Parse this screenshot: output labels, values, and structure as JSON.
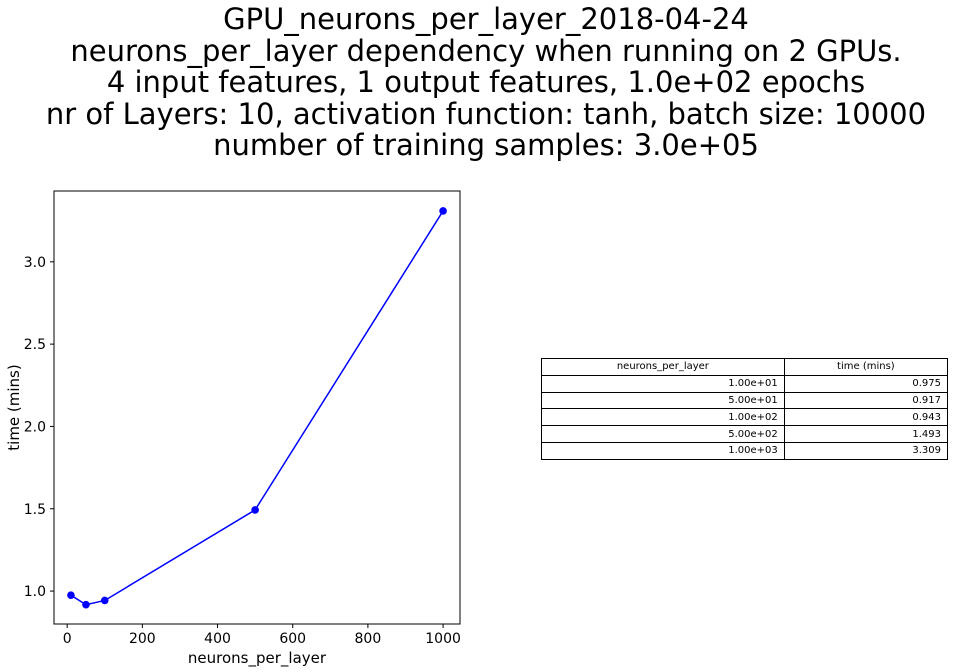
{
  "chart_data": {
    "type": "line",
    "title_lines": [
      "GPU_neurons_per_layer_2018-04-24",
      "neurons_per_layer dependency when running on 2 GPUs.",
      "4 input features, 1 output features, 1.0e+02 epochs",
      "nr of Layers: 10, activation function: tanh, batch size: 10000",
      "number of training samples: 3.0e+05"
    ],
    "xlabel": "neurons_per_layer",
    "ylabel": "time (mins)",
    "x": [
      10,
      50,
      100,
      500,
      1000
    ],
    "y": [
      0.975,
      0.917,
      0.943,
      1.493,
      3.309
    ],
    "xlim": [
      -35,
      1045
    ],
    "ylim": [
      0.8,
      3.43
    ],
    "xticks": [
      0,
      200,
      400,
      600,
      800,
      1000
    ],
    "xtick_labels": [
      "0",
      "200",
      "400",
      "600",
      "800",
      "1000"
    ],
    "yticks": [
      1.0,
      1.5,
      2.0,
      2.5,
      3.0
    ],
    "ytick_labels": [
      "1.0",
      "1.5",
      "2.0",
      "2.5",
      "3.0"
    ],
    "grid": false,
    "line_color": "#0000ff",
    "marker": "circle"
  },
  "table": {
    "headers": [
      "neurons_per_layer",
      "time (mins)"
    ],
    "rows": [
      [
        "1.00e+01",
        "0.975"
      ],
      [
        "5.00e+01",
        "0.917"
      ],
      [
        "1.00e+02",
        "0.943"
      ],
      [
        "5.00e+02",
        "1.493"
      ],
      [
        "1.00e+03",
        "3.309"
      ]
    ]
  }
}
